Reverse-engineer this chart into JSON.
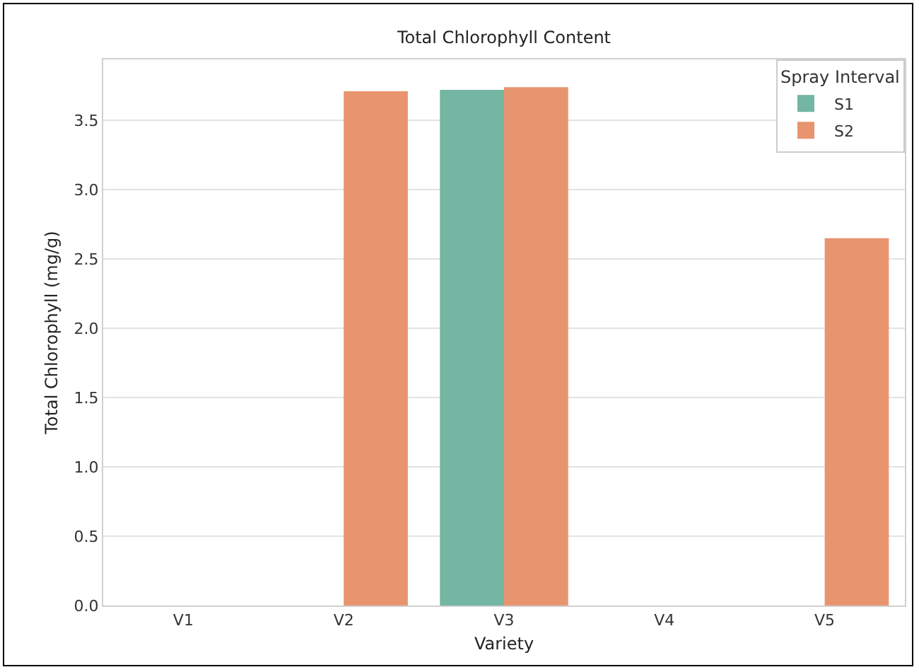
{
  "chart_data": {
    "type": "bar",
    "title": "Total Chlorophyll Content",
    "xlabel": "Variety",
    "ylabel": "Total Chlorophyll (mg/g)",
    "legend_title": "Spray Interval",
    "categories": [
      "V1",
      "V2",
      "V3",
      "V4",
      "V5"
    ],
    "series": [
      {
        "name": "S1",
        "color": "#73b6a1",
        "values": [
          null,
          null,
          3.72,
          null,
          null
        ]
      },
      {
        "name": "S2",
        "color": "#e8956f",
        "values": [
          null,
          3.71,
          3.74,
          null,
          2.65
        ]
      }
    ],
    "ylim": [
      0,
      3.94
    ],
    "yticks": [
      {
        "value": 0,
        "label": "0.0"
      },
      {
        "value": 0.5,
        "label": "0.5"
      },
      {
        "value": 1,
        "label": "1.0"
      },
      {
        "value": 1.5,
        "label": "1.5"
      },
      {
        "value": 2,
        "label": "2.0"
      },
      {
        "value": 2.5,
        "label": "2.5"
      },
      {
        "value": 3,
        "label": "3.0"
      },
      {
        "value": 3.5,
        "label": "3.5"
      }
    ],
    "grid": "y",
    "legend": "top right"
  }
}
